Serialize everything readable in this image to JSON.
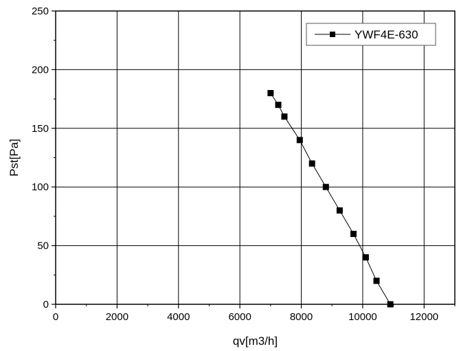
{
  "chart_data": {
    "type": "line",
    "title": "",
    "xlabel": "qv[m3/h]",
    "ylabel": "Pst[Pa]",
    "xlim": [
      0,
      13000
    ],
    "ylim": [
      0,
      250
    ],
    "x_ticks": [
      0,
      2000,
      4000,
      6000,
      8000,
      10000,
      12000
    ],
    "y_ticks": [
      0,
      50,
      100,
      150,
      200,
      250
    ],
    "x_tick_labels": [
      "0",
      "2000",
      "4000",
      "6000",
      "8000",
      "10000",
      "12000"
    ],
    "y_tick_labels": [
      "0",
      "50",
      "100",
      "150",
      "200",
      "250"
    ],
    "x_minor_ticks": [
      1000,
      3000,
      5000,
      7000,
      9000,
      11000,
      13000
    ],
    "grid": true,
    "legend_position": "top-right",
    "marker": "square",
    "series": [
      {
        "name": "YWF4E-630",
        "color": "#000000",
        "points": [
          {
            "x": 7000,
            "y": 180
          },
          {
            "x": 7250,
            "y": 170
          },
          {
            "x": 7450,
            "y": 160
          },
          {
            "x": 7950,
            "y": 140
          },
          {
            "x": 8350,
            "y": 120
          },
          {
            "x": 8800,
            "y": 100
          },
          {
            "x": 9250,
            "y": 80
          },
          {
            "x": 9700,
            "y": 60
          },
          {
            "x": 10100,
            "y": 40
          },
          {
            "x": 10450,
            "y": 20
          },
          {
            "x": 10900,
            "y": 0
          }
        ]
      }
    ]
  }
}
